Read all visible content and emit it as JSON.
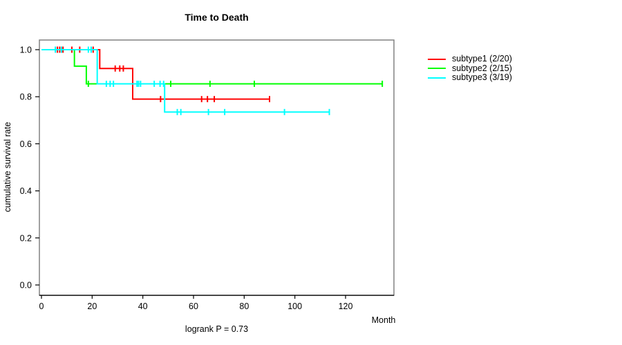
{
  "title": "Time to Death",
  "x_axis_label": "Month",
  "y_axis_label": "cumulative survival rate",
  "footer_note": "logrank P = 0.73",
  "legend": [
    {
      "label": "subtype1 (2/20)",
      "color": "#ff0000"
    },
    {
      "label": "subtype2 (2/15)",
      "color": "#00ff00"
    },
    {
      "label": "subtype3 (3/19)",
      "color": "#00ffff"
    }
  ],
  "colors": {
    "box_border": "#808080",
    "axis": "#000000",
    "text": "#000000",
    "background": "#ffffff"
  },
  "chart_data": {
    "type": "line",
    "subtype": "kaplan-meier-step",
    "title": "Time to Death",
    "xlabel": "Month",
    "ylabel": "cumulative survival rate",
    "annotation": "logrank P = 0.73",
    "xlim": [
      0,
      139
    ],
    "ylim": [
      -0.04,
      1.04
    ],
    "x_ticks": [
      0,
      20,
      40,
      60,
      80,
      100,
      120
    ],
    "y_ticks": [
      0.0,
      0.2,
      0.4,
      0.6,
      0.8,
      1.0
    ],
    "grid": false,
    "legend_position": "right-outside",
    "series": [
      {
        "name": "subtype1 (2/20)",
        "color": "#ff0000",
        "events_total": "2/20",
        "steps": [
          [
            0,
            1.0
          ],
          [
            23,
            1.0
          ],
          [
            23,
            0.92
          ],
          [
            36,
            0.92
          ],
          [
            36,
            0.79
          ],
          [
            90,
            0.79
          ]
        ],
        "censor_marks": [
          [
            6.3,
            1.0
          ],
          [
            7.2,
            1.0
          ],
          [
            8.5,
            1.0
          ],
          [
            12,
            1.0
          ],
          [
            15.1,
            1.0
          ],
          [
            20.4,
            1.0
          ],
          [
            29.1,
            0.92
          ],
          [
            30.9,
            0.92
          ],
          [
            32.3,
            0.92
          ],
          [
            47,
            0.79
          ],
          [
            63.2,
            0.79
          ],
          [
            65.5,
            0.79
          ],
          [
            68.2,
            0.79
          ],
          [
            90,
            0.79
          ]
        ]
      },
      {
        "name": "subtype2 (2/15)",
        "color": "#00ff00",
        "events_total": "2/15",
        "steps": [
          [
            0,
            1.0
          ],
          [
            13,
            1.0
          ],
          [
            13,
            0.93
          ],
          [
            17.7,
            0.93
          ],
          [
            17.7,
            0.855
          ],
          [
            134.5,
            0.855
          ]
        ],
        "censor_marks": [
          [
            18.5,
            0.855
          ],
          [
            51,
            0.855
          ],
          [
            66.5,
            0.855
          ],
          [
            84,
            0.855
          ],
          [
            134.5,
            0.855
          ]
        ]
      },
      {
        "name": "subtype3 (3/19)",
        "color": "#00ffff",
        "events_total": "3/19",
        "steps": [
          [
            0,
            1.0
          ],
          [
            22,
            1.0
          ],
          [
            22,
            0.855
          ],
          [
            48.6,
            0.855
          ],
          [
            48.6,
            0.735
          ],
          [
            113.6,
            0.735
          ]
        ],
        "censor_marks": [
          [
            5.5,
            1.0
          ],
          [
            7.9,
            1.0
          ],
          [
            18.5,
            1.0
          ],
          [
            19.6,
            1.0
          ],
          [
            25.6,
            0.855
          ],
          [
            27.1,
            0.855
          ],
          [
            28.4,
            0.855
          ],
          [
            37.7,
            0.855
          ],
          [
            38.3,
            0.855
          ],
          [
            39.1,
            0.855
          ],
          [
            44.5,
            0.855
          ],
          [
            46.8,
            0.855
          ],
          [
            48.2,
            0.855
          ],
          [
            53.6,
            0.735
          ],
          [
            55,
            0.735
          ],
          [
            65.9,
            0.735
          ],
          [
            72.3,
            0.735
          ],
          [
            95.9,
            0.735
          ],
          [
            113.6,
            0.735
          ]
        ]
      }
    ]
  }
}
